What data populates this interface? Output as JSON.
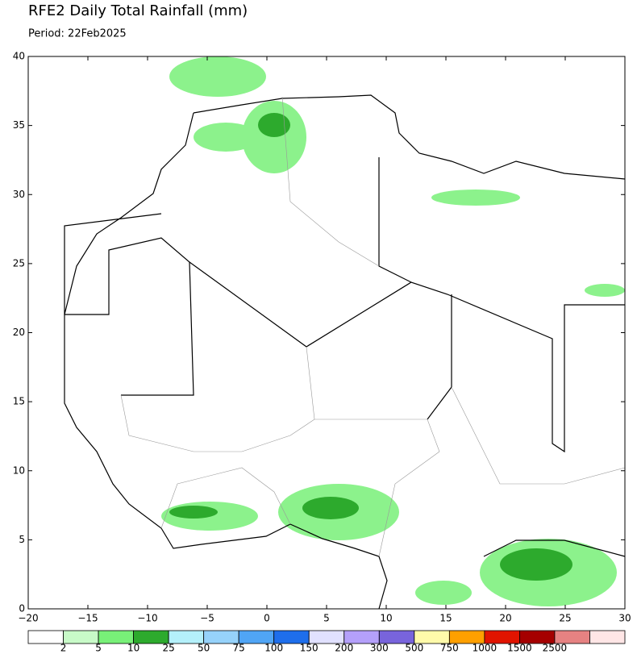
{
  "title": "RFE2 Daily Total Rainfall (mm)",
  "subtitle": "Period: 22Feb2025",
  "map": {
    "xlim": [
      -20,
      30
    ],
    "ylim": [
      0,
      40
    ],
    "xticks": [
      {
        "value": -20,
        "label": "−20"
      },
      {
        "value": -15,
        "label": "−15"
      },
      {
        "value": -10,
        "label": "−10"
      },
      {
        "value": -5,
        "label": "−5"
      },
      0,
      5,
      10,
      15,
      20,
      25,
      30
    ],
    "yticks": [
      0,
      5,
      10,
      15,
      20,
      25,
      30,
      35,
      40
    ]
  },
  "colorbar": {
    "bins": [
      2,
      5,
      10,
      25,
      50,
      75,
      100,
      150,
      200,
      300,
      500,
      750,
      1000,
      1500,
      2500
    ],
    "colors": [
      "#ffffff",
      "#c8fac8",
      "#78f078",
      "#2daa2d",
      "#b4f0fa",
      "#96d2fa",
      "#50a5f5",
      "#1e6eeb",
      "#e1e1ff",
      "#b4a0fa",
      "#7864dc",
      "#fffaaa",
      "#ffa000",
      "#e11400",
      "#a50000",
      "#e68282",
      "#ffe6e6"
    ]
  }
}
